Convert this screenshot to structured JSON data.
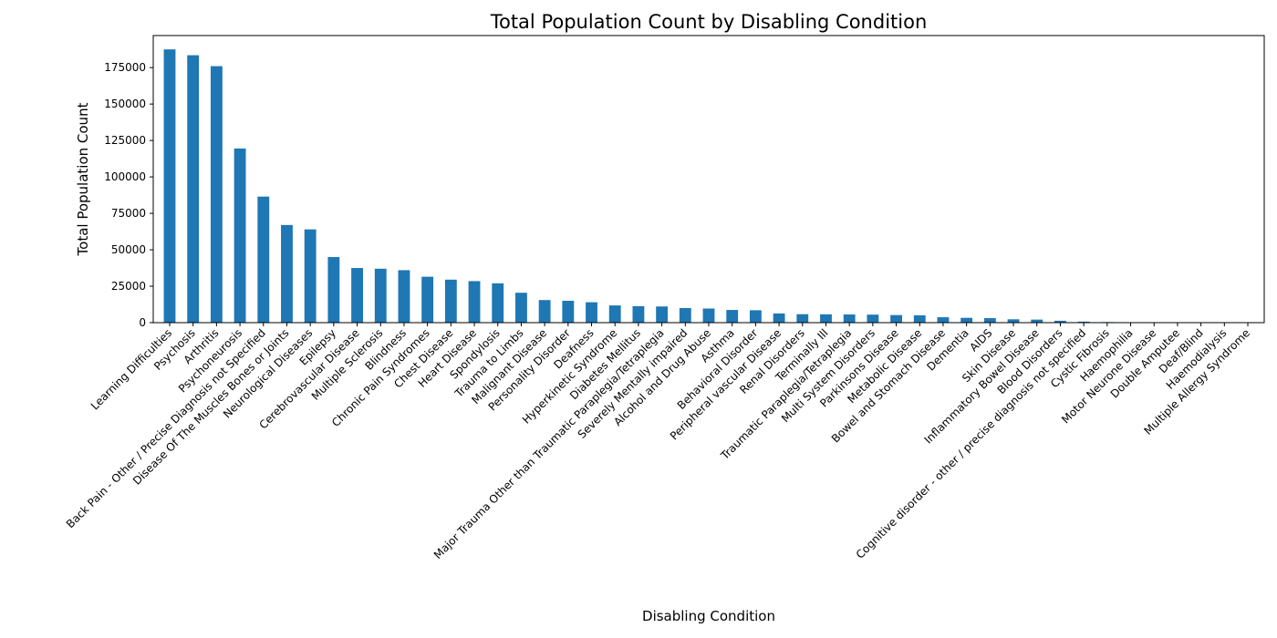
{
  "chart_data": {
    "type": "bar",
    "title": "Total Population Count by Disabling Condition",
    "xlabel": "Disabling Condition",
    "ylabel": "Total Population Count",
    "ylim": [
      0,
      197000
    ],
    "yticks": [
      0,
      25000,
      50000,
      75000,
      100000,
      125000,
      150000,
      175000
    ],
    "yticklabels": [
      "0",
      "25000",
      "50000",
      "75000",
      "100000",
      "125000",
      "150000",
      "175000"
    ],
    "bar_color": "#1f77b4",
    "grid": false,
    "legend": "none",
    "categories": [
      "Learning Difficulties",
      "Psychosis",
      "Arthritis",
      "Psychoneurosis",
      "Back Pain - Other / Precise Diagnosis not Specified",
      "Disease Of The Muscles  Bones or Joints",
      "Neurological Diseases",
      "Epilepsy",
      "Cerebrovascular Disease",
      "Multiple Sclerosis",
      "Blindness",
      "Chronic Pain Syndromes",
      "Chest Disease",
      "Heart Disease",
      "Spondylosis",
      "Trauma to Limbs",
      "Malignant Disease",
      "Personality Disorder",
      "Deafness",
      "Hyperkinetic Syndrome",
      "Diabetes Mellitus",
      "Major Trauma Other than Traumatic Paraplegia/Tetraplegia",
      "Severely Mentally impaired",
      "Alcohol and Drug Abuse",
      "Asthma",
      "Behavioral Disorder",
      "Peripheral vascular Disease",
      "Renal Disorders",
      "Terminally Ill",
      "Traumatic Paraplegia/Tetraplegia",
      "Multi System Disorders",
      "Parkinsons Disease",
      "Metabolic Disease",
      "Bowel and Stomach Disease",
      "Dementia",
      "AIDS",
      "Skin Disease",
      "Inflammatory Bowel Disease",
      "Blood Disorders",
      "Cognitive disorder - other / precise diagnosis not specified",
      "Cystic Fibrosis",
      "Haemophilia",
      "Motor Neurone Disease",
      "Double Amputee",
      "Deaf/Blind",
      "Haemodialysis",
      "Multiple Allergy Syndrome"
    ],
    "values": [
      187500,
      183500,
      176000,
      119500,
      86500,
      67000,
      64000,
      45000,
      37500,
      37000,
      36000,
      31500,
      29500,
      28500,
      27000,
      20500,
      15500,
      15000,
      14000,
      11800,
      11300,
      11100,
      10000,
      9700,
      8700,
      8500,
      6300,
      5800,
      5700,
      5600,
      5500,
      5200,
      5000,
      3700,
      3300,
      3100,
      2300,
      2100,
      1300,
      700,
      400,
      200,
      150,
      100,
      80,
      50,
      30
    ]
  }
}
